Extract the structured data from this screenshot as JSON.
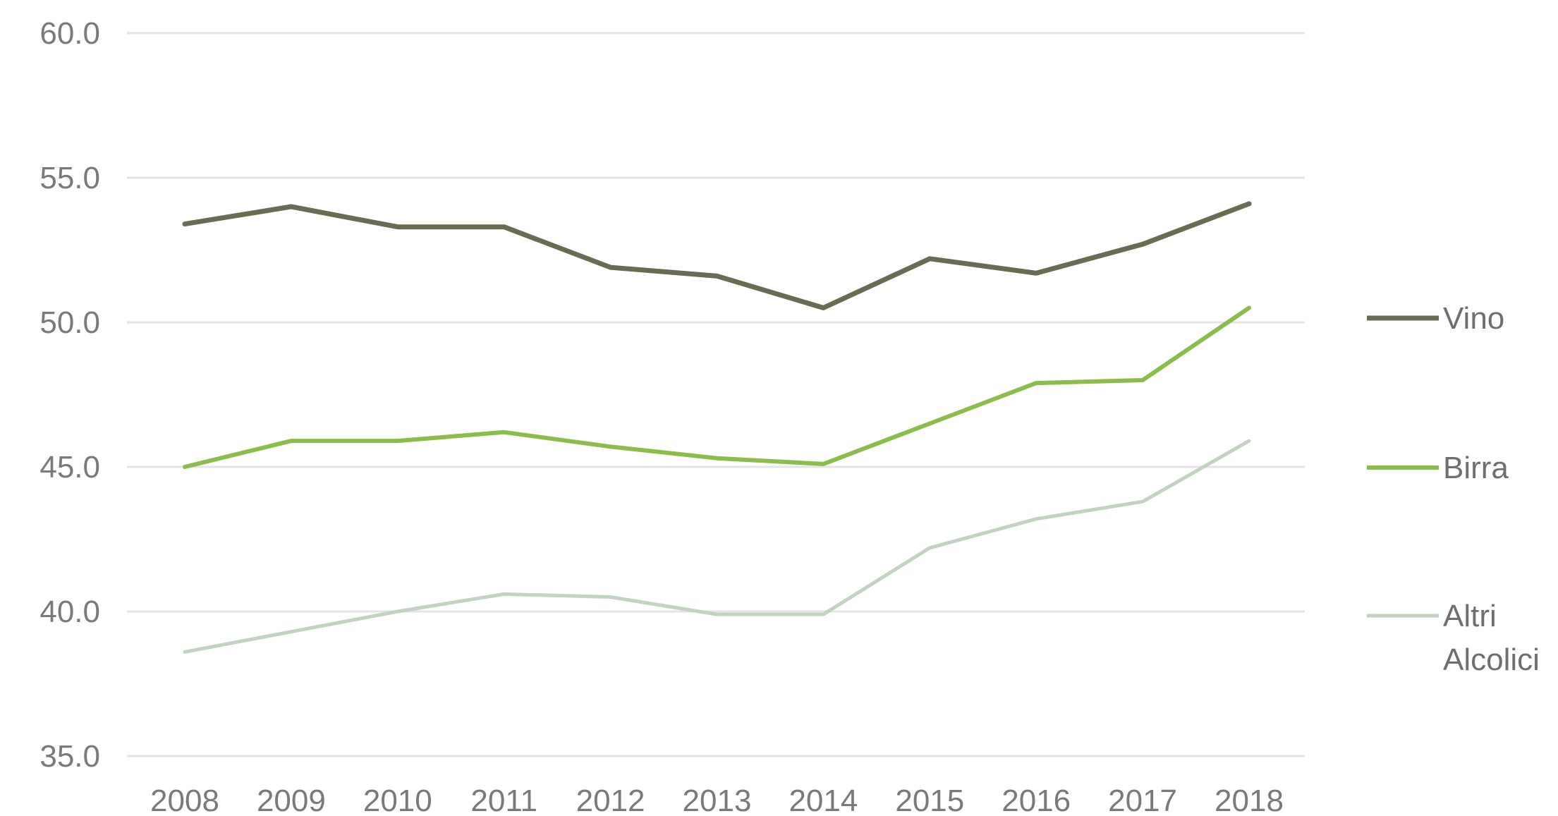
{
  "chart_data": {
    "type": "line",
    "title": "",
    "xlabel": "",
    "ylabel": "",
    "x": [
      "2008",
      "2009",
      "2010",
      "2011",
      "2012",
      "2013",
      "2014",
      "2015",
      "2016",
      "2017",
      "2018"
    ],
    "ylim": [
      35.0,
      60.0
    ],
    "yticks": [
      "60.0",
      "55.0",
      "50.0",
      "45.0",
      "40.0",
      "35.0"
    ],
    "grid": true,
    "legend_position": "right",
    "series": [
      {
        "name": "Vino",
        "color": "#6b6a52",
        "values": [
          53.4,
          54.0,
          53.3,
          53.3,
          51.9,
          51.6,
          50.5,
          52.2,
          51.7,
          52.7,
          54.1
        ]
      },
      {
        "name": "Birra",
        "color": "#8bbd4a",
        "values": [
          45.0,
          45.9,
          45.9,
          46.2,
          45.7,
          45.3,
          45.1,
          46.5,
          47.9,
          48.0,
          50.5
        ]
      },
      {
        "name": "Altri Alcolici",
        "color": "#c2d3c2",
        "values": [
          38.6,
          39.3,
          40.0,
          40.6,
          40.5,
          39.9,
          39.9,
          42.2,
          43.2,
          43.8,
          45.9
        ]
      }
    ]
  }
}
